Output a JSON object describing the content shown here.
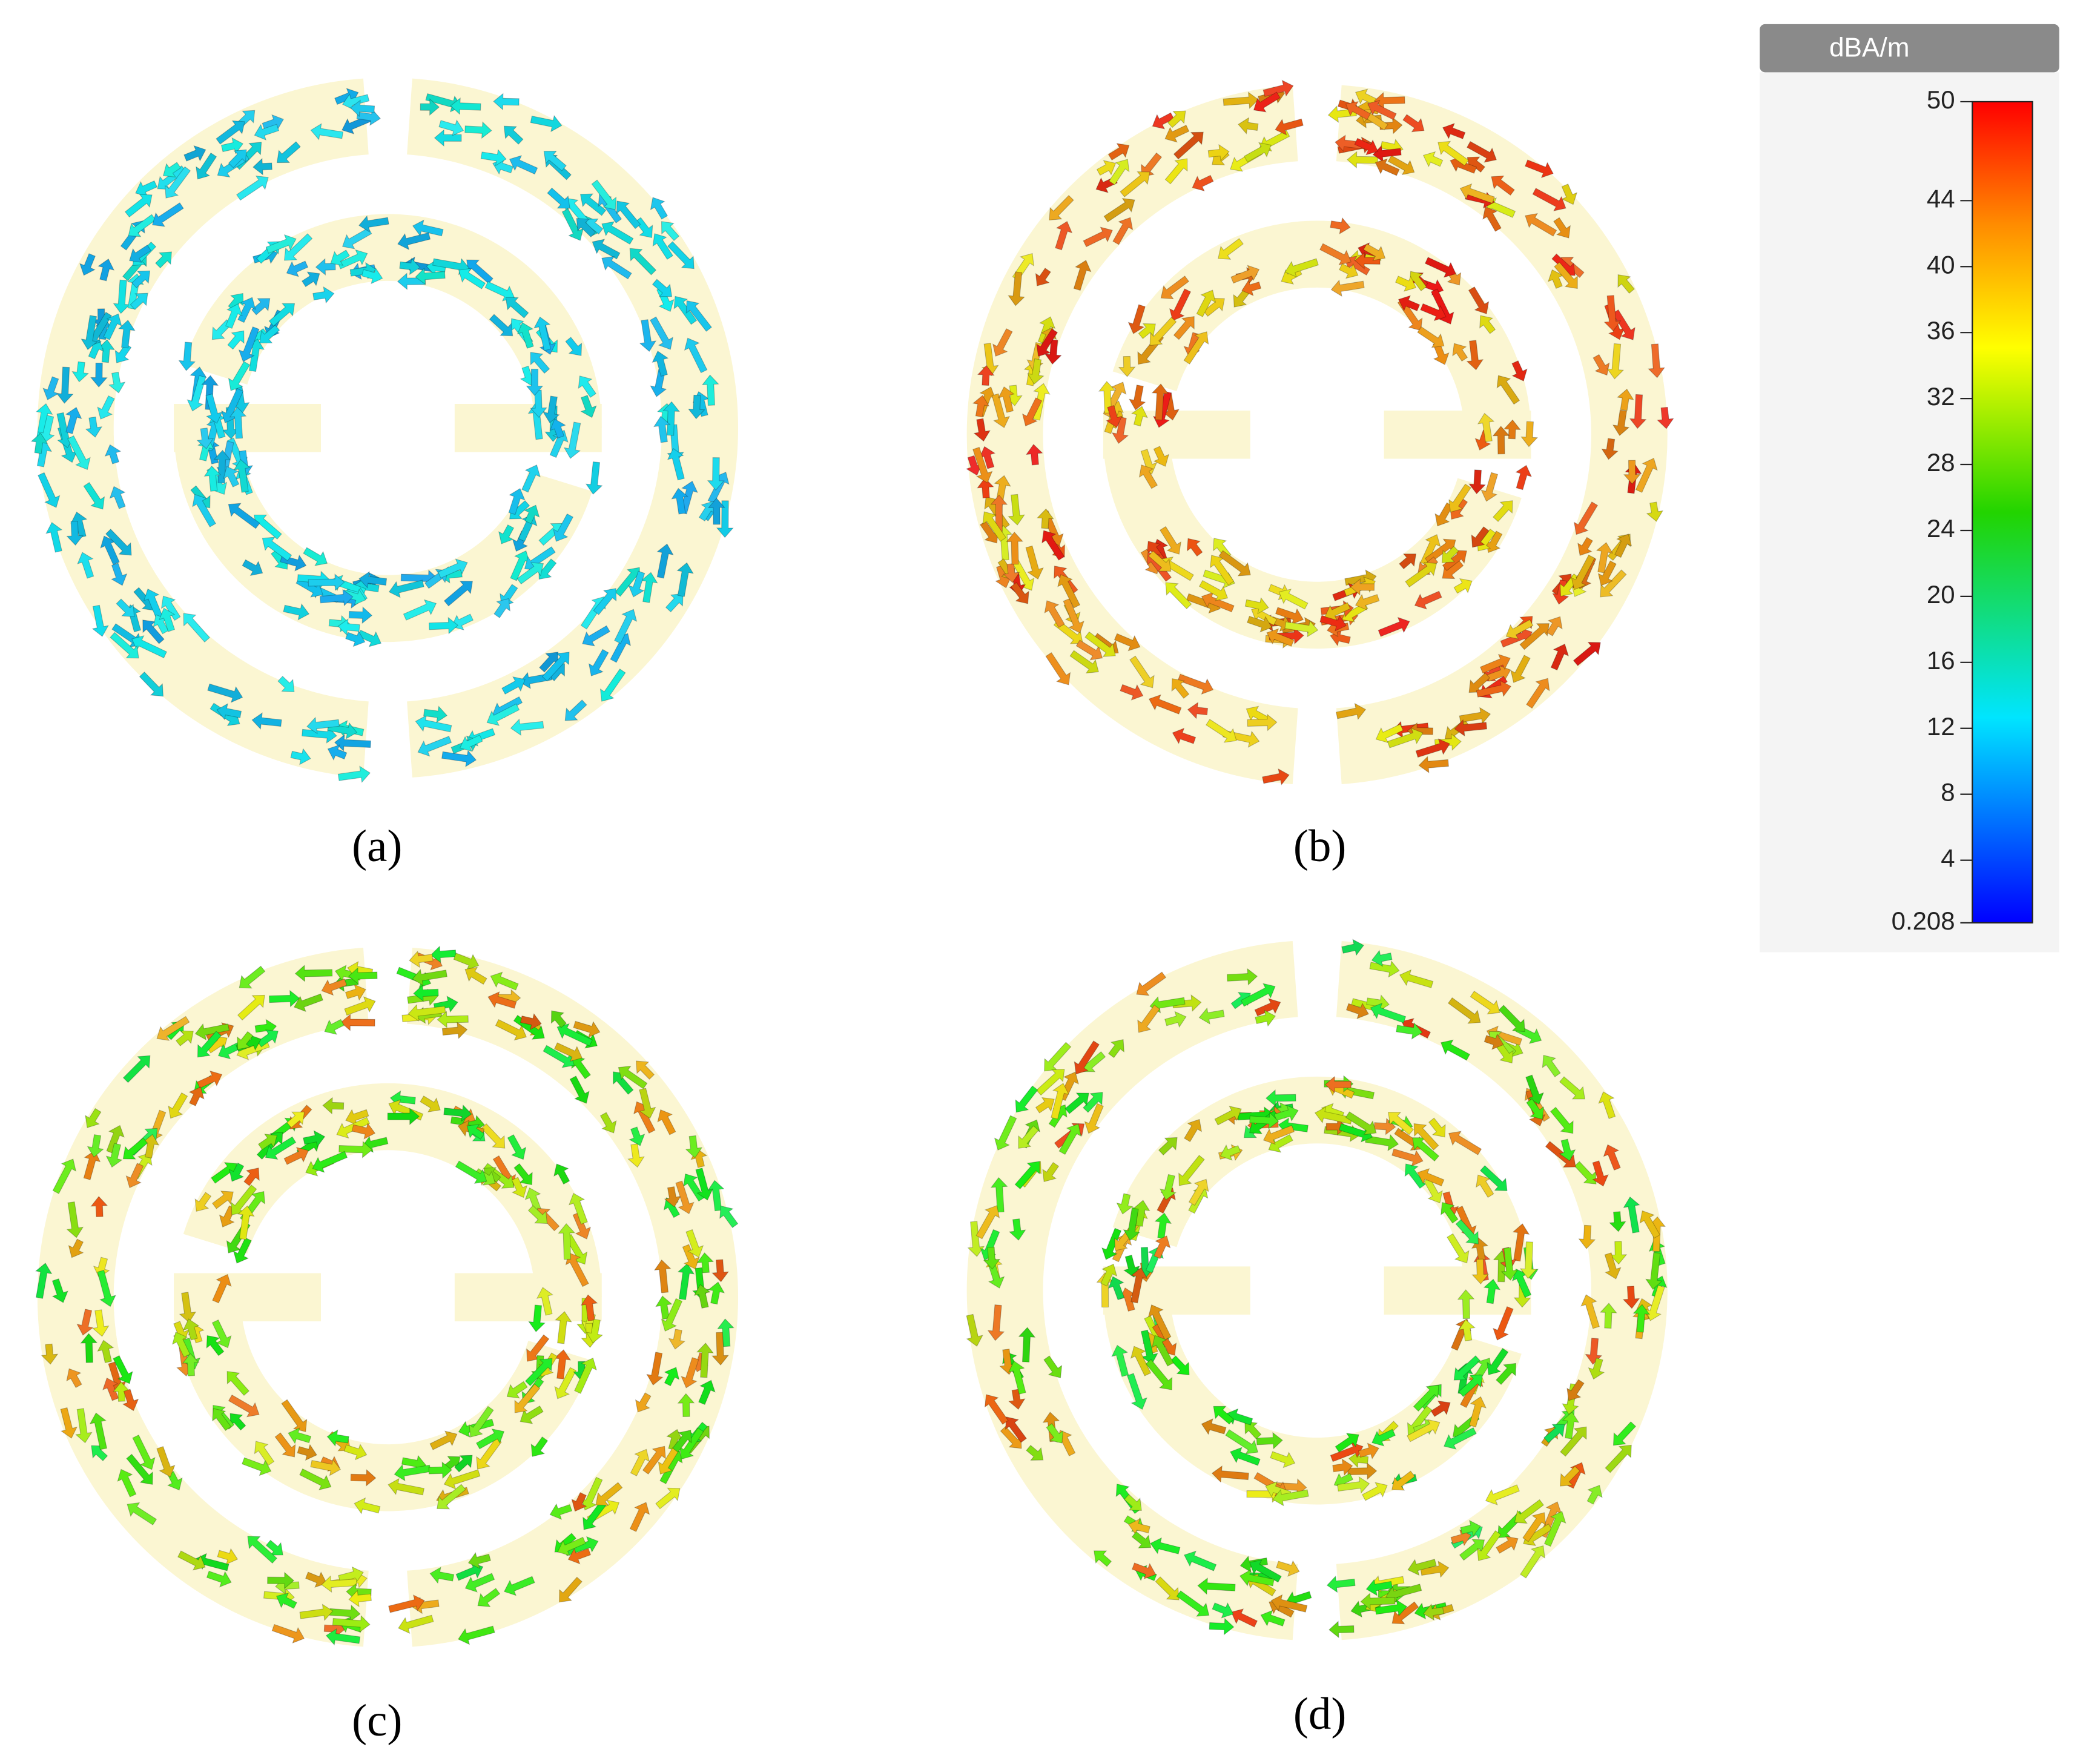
{
  "panels": [
    {
      "label": "(a)"
    },
    {
      "label": "(b)"
    },
    {
      "label": "(c)"
    },
    {
      "label": "(d)"
    }
  ],
  "colorbar": {
    "unit": "dBA/m",
    "ticks": [
      0.208,
      4,
      8,
      12,
      16,
      20,
      24,
      28,
      32,
      36,
      40,
      44,
      50
    ]
  }
}
